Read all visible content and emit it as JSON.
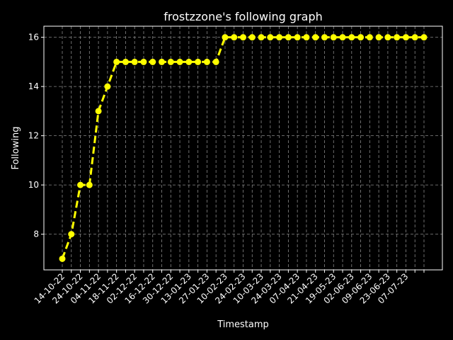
{
  "chart_data": {
    "type": "line",
    "title": "frostzzone's following graph",
    "xlabel": "Timestamp",
    "ylabel": "Following",
    "yticks": [
      8,
      10,
      12,
      14,
      16
    ],
    "ylim": [
      6.55,
      16.45
    ],
    "grid": true,
    "x_tick_labels": [
      "14-10-22",
      "24-10-22",
      "04-11-22",
      "18-11-22",
      "02-12-22",
      "16-12-22",
      "30-12-22",
      "13-01-23",
      "27-01-23",
      "10-02-23",
      "24-02-23",
      "10-03-23",
      "24-03-23",
      "07-04-23",
      "21-04-23",
      "19-05-23",
      "02-06-23",
      "09-06-23",
      "23-06-23",
      "07-07-23"
    ],
    "series": [
      {
        "values": [
          7,
          8,
          10,
          10,
          13,
          14,
          15,
          15,
          15,
          15,
          15,
          15,
          15,
          15,
          15,
          15,
          15,
          15,
          16,
          16,
          16,
          16,
          16,
          16,
          16,
          16,
          16,
          16,
          16,
          16,
          16,
          16,
          16,
          16,
          16,
          16,
          16,
          16,
          16,
          16,
          16
        ]
      }
    ],
    "colors": {
      "background": "#000000",
      "line": "#ffff00",
      "text": "#ffffff",
      "grid": "#888888"
    }
  }
}
